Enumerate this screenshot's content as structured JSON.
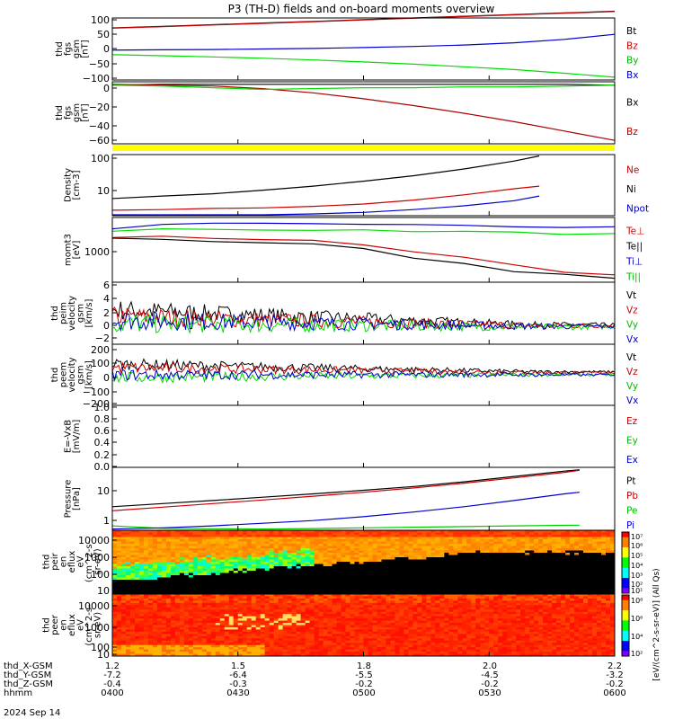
{
  "title": "P3 (TH-D) fields and on-board moments overview",
  "footer": {
    "rows": [
      {
        "label": "thd_X-GSM",
        "values": [
          "1.2",
          "1.5",
          "1.8",
          "2.0",
          "2.2"
        ]
      },
      {
        "label": "thd_Y-GSM",
        "values": [
          "-7.2",
          "-6.4",
          "-5.5",
          "-4.5",
          "-3.2"
        ]
      },
      {
        "label": "thd_Z-GSM",
        "values": [
          "-0.4",
          "-0.3",
          "-0.2",
          "-0.2",
          "-0.2"
        ]
      },
      {
        "label": "hhmm",
        "values": [
          "0400",
          "0430",
          "0500",
          "0530",
          "0600"
        ]
      }
    ],
    "date": "2024 Sep 14"
  },
  "chart_data": [
    {
      "type": "line",
      "ylabel": [
        "thd",
        "fgs",
        "gsm",
        "[nT]"
      ],
      "ylim": [
        -110,
        110
      ],
      "yticks": [
        "100",
        "50",
        "0",
        "−50",
        "−100"
      ],
      "x": [
        0,
        0.1,
        0.2,
        0.3,
        0.4,
        0.5,
        0.6,
        0.7,
        0.8,
        0.9,
        1.0
      ],
      "series": [
        {
          "name": "Bt",
          "color": "#000000",
          "values": [
            75,
            80,
            86,
            92,
            98,
            104,
            110,
            116,
            122,
            128,
            134
          ]
        },
        {
          "name": "Bz",
          "color": "#cc0000",
          "values": [
            74,
            79,
            85,
            91,
            97,
            103,
            109,
            115,
            121,
            127,
            133
          ]
        },
        {
          "name": "By",
          "color": "#00dd00",
          "values": [
            -20,
            -24,
            -28,
            -33,
            -39,
            -46,
            -54,
            -63,
            -73,
            -86,
            -100
          ]
        },
        {
          "name": "Bx",
          "color": "#0000cc",
          "values": [
            -4,
            -3,
            -2,
            0,
            2,
            5,
            9,
            14,
            22,
            34,
            52
          ]
        }
      ]
    },
    {
      "type": "line",
      "ylabel": [
        "thd",
        "fgs",
        "gsm",
        "[nT]"
      ],
      "ylim": [
        -70,
        3
      ],
      "yticks": [
        "0",
        "−20",
        "−40",
        "−60"
      ],
      "x": [
        0,
        0.1,
        0.2,
        0.3,
        0.4,
        0.5,
        0.6,
        0.7,
        0.8,
        0.9,
        1.0
      ],
      "series": [
        {
          "name": "Bx",
          "color": "#000000",
          "values": [
            -1,
            0,
            0,
            0,
            0,
            0,
            0,
            0,
            0,
            0,
            -1
          ]
        },
        {
          "name": "Bz",
          "color": "#aa0000",
          "values": [
            0,
            -1,
            -2,
            -5,
            -10,
            -17,
            -25,
            -34,
            -44,
            -55,
            -66
          ]
        }
      ],
      "extra_series": [
        {
          "color": "#00dd00",
          "values": [
            -1,
            -2,
            -4,
            -6,
            -5,
            -4,
            -4,
            -3,
            -3,
            -2,
            -1
          ]
        }
      ]
    },
    {
      "type": "line",
      "scale": "log",
      "ylabel": [
        "Density",
        "[cm-3]"
      ],
      "ylim": [
        1.5,
        110
      ],
      "yticks": [
        "100",
        "10"
      ],
      "x": [
        0,
        0.1,
        0.2,
        0.3,
        0.4,
        0.5,
        0.6,
        0.7,
        0.8,
        0.85
      ],
      "series": [
        {
          "name": "Ne",
          "color": "#cc0000",
          "values": [
            2.2,
            2.3,
            2.5,
            2.6,
            2.9,
            3.4,
            4.5,
            6.5,
            10,
            12
          ]
        },
        {
          "name": "Ni",
          "color": "#000000",
          "values": [
            5,
            6,
            7,
            9,
            12,
            17,
            25,
            40,
            70,
            100
          ]
        },
        {
          "name": "Npot",
          "color": "#0000cc",
          "values": [
            1.6,
            1.6,
            1.6,
            1.6,
            1.7,
            1.9,
            2.3,
            3.0,
            4.3,
            6.0
          ]
        }
      ]
    },
    {
      "type": "line",
      "scale": "log",
      "ylabel": [
        "momt3",
        "[eV]"
      ],
      "ylim": [
        550,
        2800
      ],
      "yticks": [
        "1000"
      ],
      "x": [
        0,
        0.1,
        0.2,
        0.3,
        0.4,
        0.5,
        0.6,
        0.7,
        0.8,
        0.9,
        1.0
      ],
      "series": [
        {
          "name": "Te⊥",
          "color": "#cc0000",
          "values": [
            1750,
            1700,
            1680,
            1640,
            1550,
            1400,
            1200,
            1000,
            820,
            700,
            640
          ]
        },
        {
          "name": "Te||",
          "color": "#000000",
          "values": [
            1650,
            1580,
            1560,
            1500,
            1420,
            1260,
            1060,
            860,
            720,
            620,
            570
          ]
        },
        {
          "name": "Ti⊥",
          "color": "#0000cc",
          "values": [
            2150,
            2350,
            2380,
            2400,
            2380,
            2350,
            2300,
            2250,
            2230,
            2200,
            2180
          ]
        },
        {
          "name": "Ti||",
          "color": "#00dd00",
          "values": [
            2000,
            2150,
            2100,
            2050,
            2050,
            2000,
            1950,
            1950,
            1900,
            1880,
            1900
          ]
        }
      ]
    },
    {
      "type": "line",
      "ylabel": [
        "thd",
        "peim",
        "velocity",
        "gsm",
        "[km/s]"
      ],
      "ylim": [
        -2.5,
        6.5
      ],
      "yticks": [
        "6",
        "4",
        "2",
        "0",
        "−2"
      ],
      "x": [
        0,
        1
      ],
      "series": [
        {
          "name": "Vt",
          "color": "#000000",
          "values": [
            2.5,
            0.3
          ]
        },
        {
          "name": "Vz",
          "color": "#cc0000",
          "values": [
            1.5,
            0.2
          ]
        },
        {
          "name": "Vy",
          "color": "#00dd00",
          "values": [
            0.5,
            0.0
          ]
        },
        {
          "name": "Vx",
          "color": "#0000cc",
          "values": [
            1.0,
            0.1
          ]
        }
      ]
    },
    {
      "type": "line",
      "ylabel": [
        "thd",
        "peem",
        "velocity",
        "gsm",
        "[km/s]"
      ],
      "ylim": [
        -210,
        210
      ],
      "yticks": [
        "200",
        "100",
        "0",
        "−100",
        "−200"
      ],
      "x": [
        0,
        1
      ],
      "series": [
        {
          "name": "Vt",
          "color": "#000000",
          "values": [
            75,
            20
          ]
        },
        {
          "name": "Vz",
          "color": "#cc0000",
          "values": [
            50,
            15
          ]
        },
        {
          "name": "Vy",
          "color": "#00dd00",
          "values": [
            -20,
            0
          ]
        },
        {
          "name": "Vx",
          "color": "#0000cc",
          "values": [
            0,
            0
          ]
        }
      ]
    },
    {
      "type": "line",
      "ylabel": [
        "E=-VxB",
        "[mV/m]"
      ],
      "ylim": [
        0,
        1.0
      ],
      "yticks": [
        "1.0",
        "0.8",
        "0.6",
        "0.4",
        "0.2",
        "0.0"
      ],
      "x": [],
      "series": [
        {
          "name": "Ez",
          "color": "#cc0000",
          "values": []
        },
        {
          "name": "Ey",
          "color": "#00dd00",
          "values": []
        },
        {
          "name": "Ex",
          "color": "#0000cc",
          "values": []
        }
      ]
    },
    {
      "type": "line",
      "scale": "log",
      "ylabel": [
        "Pressure",
        "[nPa]"
      ],
      "ylim": [
        0.5,
        60
      ],
      "yticks": [
        "10",
        "1"
      ],
      "x": [
        0,
        0.1,
        0.2,
        0.3,
        0.4,
        0.5,
        0.6,
        0.7,
        0.8,
        0.9,
        0.93
      ],
      "series": [
        {
          "name": "Pt",
          "color": "#000000",
          "values": [
            3,
            3.8,
            4.8,
            6.2,
            8,
            10.5,
            14,
            20,
            30,
            45,
            50
          ]
        },
        {
          "name": "Pb",
          "color": "#cc0000",
          "values": [
            2.2,
            2.9,
            3.8,
            5,
            6.7,
            9,
            12.5,
            18,
            27,
            41,
            48
          ]
        },
        {
          "name": "Pe",
          "color": "#00cc00",
          "values": [
            0.7,
            0.58,
            0.56,
            0.55,
            0.57,
            0.6,
            0.63,
            0.66,
            0.7,
            0.73,
            0.74
          ]
        },
        {
          "name": "Pi",
          "color": "#0000cc",
          "values": [
            0.55,
            0.6,
            0.7,
            0.85,
            1.05,
            1.4,
            2,
            3,
            4.8,
            8,
            9
          ]
        }
      ]
    },
    {
      "type": "heatmap",
      "ylabel": [
        "thd",
        "peir",
        "en",
        "eflux",
        "eV",
        "(cm^2-s-",
        "sr-eV)"
      ],
      "yticks": [
        "10000",
        "1000",
        "100",
        "10"
      ]
    },
    {
      "type": "heatmap",
      "ylabel": [
        "thd",
        "peer",
        "en",
        "eflux",
        "eV",
        "(cm^2-s-",
        "sr-eV)"
      ],
      "yticks": [
        "10000",
        "1000",
        "100",
        "10"
      ]
    }
  ],
  "colorbar": {
    "ticks": [
      "10⁷",
      "10⁶",
      "10⁵",
      "10⁴",
      "10³",
      "10²",
      "10¹",
      "10⁸",
      "10⁶",
      "10⁴",
      "10²"
    ],
    "label": "[eV/(cm^2-s-sr-eV)] (All Qs)"
  }
}
